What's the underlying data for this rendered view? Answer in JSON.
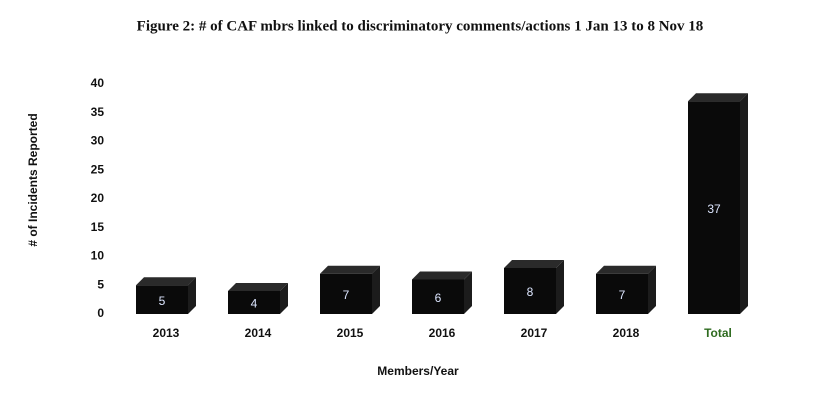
{
  "chart_data": {
    "type": "bar",
    "title": "Figure 2: # of CAF mbrs linked to discriminatory comments/actions 1 Jan 13 to 8 Nov 18",
    "y_label": "# of Incidents Reported",
    "x_label": "Members/Year",
    "categories": [
      "2013",
      "2014",
      "2015",
      "2016",
      "2017",
      "2018",
      "Total"
    ],
    "values": [
      5,
      4,
      7,
      6,
      8,
      7,
      37
    ],
    "color": "#0a0a0a",
    "highlight_category_color": "#2e6b1f",
    "ylim": [
      0,
      40
    ],
    "yticks": [
      0,
      5,
      10,
      15,
      20,
      25,
      30,
      35,
      40
    ],
    "grid": false
  }
}
